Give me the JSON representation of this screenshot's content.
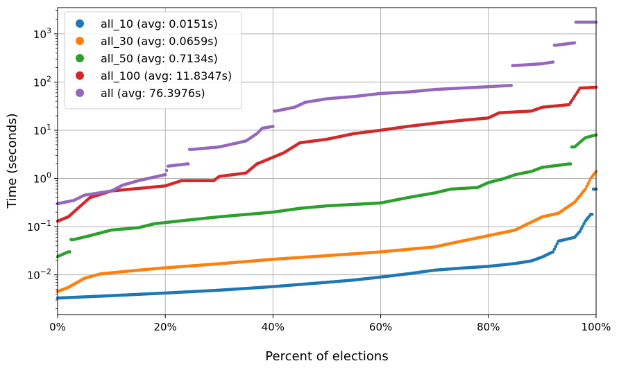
{
  "chart_data": {
    "type": "scatter",
    "title": "",
    "xlabel": "Percent of elections",
    "ylabel": "Time (seconds)",
    "xlim": [
      0,
      100
    ],
    "ylim": [
      0.0015,
      3500
    ],
    "yscale": "log",
    "grid": true,
    "legend_position": "top-left",
    "x_ticks": [
      {
        "value": 0,
        "label": "0%"
      },
      {
        "value": 20,
        "label": "20%"
      },
      {
        "value": 40,
        "label": "40%"
      },
      {
        "value": 60,
        "label": "60%"
      },
      {
        "value": 80,
        "label": "80%"
      },
      {
        "value": 100,
        "label": "100%"
      }
    ],
    "y_ticks": [
      {
        "value": 0.01,
        "base": "10",
        "exp": "−2"
      },
      {
        "value": 0.1,
        "base": "10",
        "exp": "−1"
      },
      {
        "value": 1,
        "base": "10",
        "exp": "0"
      },
      {
        "value": 10,
        "base": "10",
        "exp": "1"
      },
      {
        "value": 100,
        "base": "10",
        "exp": "2"
      },
      {
        "value": 1000,
        "base": "10",
        "exp": "3"
      }
    ],
    "series": [
      {
        "name": "all_10 (avg: 0.0151s)",
        "color": "#1f77b4",
        "points": [
          [
            0,
            0.0033
          ],
          [
            10,
            0.0037
          ],
          [
            20,
            0.0042
          ],
          [
            30,
            0.0048
          ],
          [
            40,
            0.0057
          ],
          [
            50,
            0.007
          ],
          [
            55,
            0.0078
          ],
          [
            60,
            0.009
          ],
          [
            65,
            0.0105
          ],
          [
            70,
            0.0125
          ],
          [
            75,
            0.0138
          ],
          [
            80,
            0.015
          ],
          [
            85,
            0.0172
          ],
          [
            88,
            0.0195
          ],
          [
            90,
            0.0235
          ],
          [
            92,
            0.03
          ],
          [
            93,
            0.05
          ],
          [
            96,
            0.06
          ],
          [
            97,
            0.08
          ],
          [
            98,
            0.13
          ],
          [
            99,
            0.18
          ],
          [
            100,
            0.6
          ]
        ]
      },
      {
        "name": "all_30 (avg: 0.0659s)",
        "color": "#ff7f0e",
        "points": [
          [
            0,
            0.0045
          ],
          [
            2,
            0.0055
          ],
          [
            5,
            0.0085
          ],
          [
            8,
            0.0105
          ],
          [
            15,
            0.0125
          ],
          [
            20,
            0.014
          ],
          [
            30,
            0.017
          ],
          [
            40,
            0.021
          ],
          [
            50,
            0.025
          ],
          [
            60,
            0.03
          ],
          [
            70,
            0.038
          ],
          [
            75,
            0.05
          ],
          [
            80,
            0.065
          ],
          [
            85,
            0.085
          ],
          [
            87,
            0.11
          ],
          [
            90,
            0.16
          ],
          [
            93,
            0.19
          ],
          [
            96,
            0.32
          ],
          [
            98,
            0.6
          ],
          [
            99,
            1.0
          ],
          [
            100,
            1.4
          ]
        ]
      },
      {
        "name": "all_50 (avg: 0.7134s)",
        "color": "#2ca02c",
        "points": [
          [
            0,
            0.024
          ],
          [
            2,
            0.03
          ],
          [
            3,
            0.054
          ],
          [
            6,
            0.065
          ],
          [
            10,
            0.085
          ],
          [
            15,
            0.095
          ],
          [
            18,
            0.115
          ],
          [
            25,
            0.14
          ],
          [
            30,
            0.16
          ],
          [
            40,
            0.2
          ],
          [
            45,
            0.24
          ],
          [
            50,
            0.27
          ],
          [
            60,
            0.31
          ],
          [
            65,
            0.4
          ],
          [
            70,
            0.5
          ],
          [
            73,
            0.6
          ],
          [
            78,
            0.65
          ],
          [
            80,
            0.82
          ],
          [
            83,
            1.0
          ],
          [
            85,
            1.2
          ],
          [
            88,
            1.4
          ],
          [
            90,
            1.7
          ],
          [
            95,
            2.0
          ],
          [
            96,
            4.5
          ],
          [
            98,
            7.0
          ],
          [
            100,
            8.0
          ]
        ]
      },
      {
        "name": "all_100 (avg: 11.8347s)",
        "color": "#d62728",
        "points": [
          [
            0,
            0.13
          ],
          [
            2,
            0.16
          ],
          [
            6,
            0.4
          ],
          [
            10,
            0.55
          ],
          [
            15,
            0.62
          ],
          [
            20,
            0.7
          ],
          [
            23,
            0.9
          ],
          [
            29,
            0.9
          ],
          [
            30,
            1.1
          ],
          [
            35,
            1.3
          ],
          [
            37,
            2.0
          ],
          [
            42,
            3.4
          ],
          [
            45,
            5.5
          ],
          [
            50,
            6.5
          ],
          [
            55,
            8.5
          ],
          [
            60,
            10.0
          ],
          [
            65,
            12.0
          ],
          [
            70,
            14.0
          ],
          [
            75,
            16.0
          ],
          [
            80,
            18.0
          ],
          [
            82,
            23.0
          ],
          [
            88,
            25.0
          ],
          [
            90,
            30.0
          ],
          [
            95,
            34.0
          ],
          [
            97,
            75.0
          ],
          [
            100,
            78.0
          ]
        ]
      },
      {
        "name": "all (avg: 76.3976s)",
        "color": "#9467bd",
        "points": [
          [
            0,
            0.3
          ],
          [
            3,
            0.35
          ],
          [
            5,
            0.45
          ],
          [
            10,
            0.55
          ],
          [
            12,
            0.72
          ],
          [
            15,
            0.9
          ],
          [
            20,
            1.2
          ],
          [
            20.5,
            1.8
          ],
          [
            24,
            2.0
          ],
          [
            25,
            4.0
          ],
          [
            30,
            4.5
          ],
          [
            35,
            6.0
          ],
          [
            37,
            8.5
          ],
          [
            38,
            11.0
          ],
          [
            40,
            12.0
          ],
          [
            40.5,
            25.0
          ],
          [
            44,
            30.0
          ],
          [
            46,
            38.0
          ],
          [
            50,
            45.0
          ],
          [
            55,
            50.0
          ],
          [
            60,
            58.0
          ],
          [
            65,
            62.0
          ],
          [
            70,
            70.0
          ],
          [
            75,
            75.0
          ],
          [
            80,
            80.0
          ],
          [
            84,
            85.0
          ],
          [
            85,
            220.0
          ],
          [
            90,
            240.0
          ],
          [
            92,
            260.0
          ],
          [
            92.5,
            580.0
          ],
          [
            96,
            650.0
          ],
          [
            96.5,
            1750.0
          ],
          [
            100,
            1750.0
          ]
        ]
      }
    ]
  }
}
